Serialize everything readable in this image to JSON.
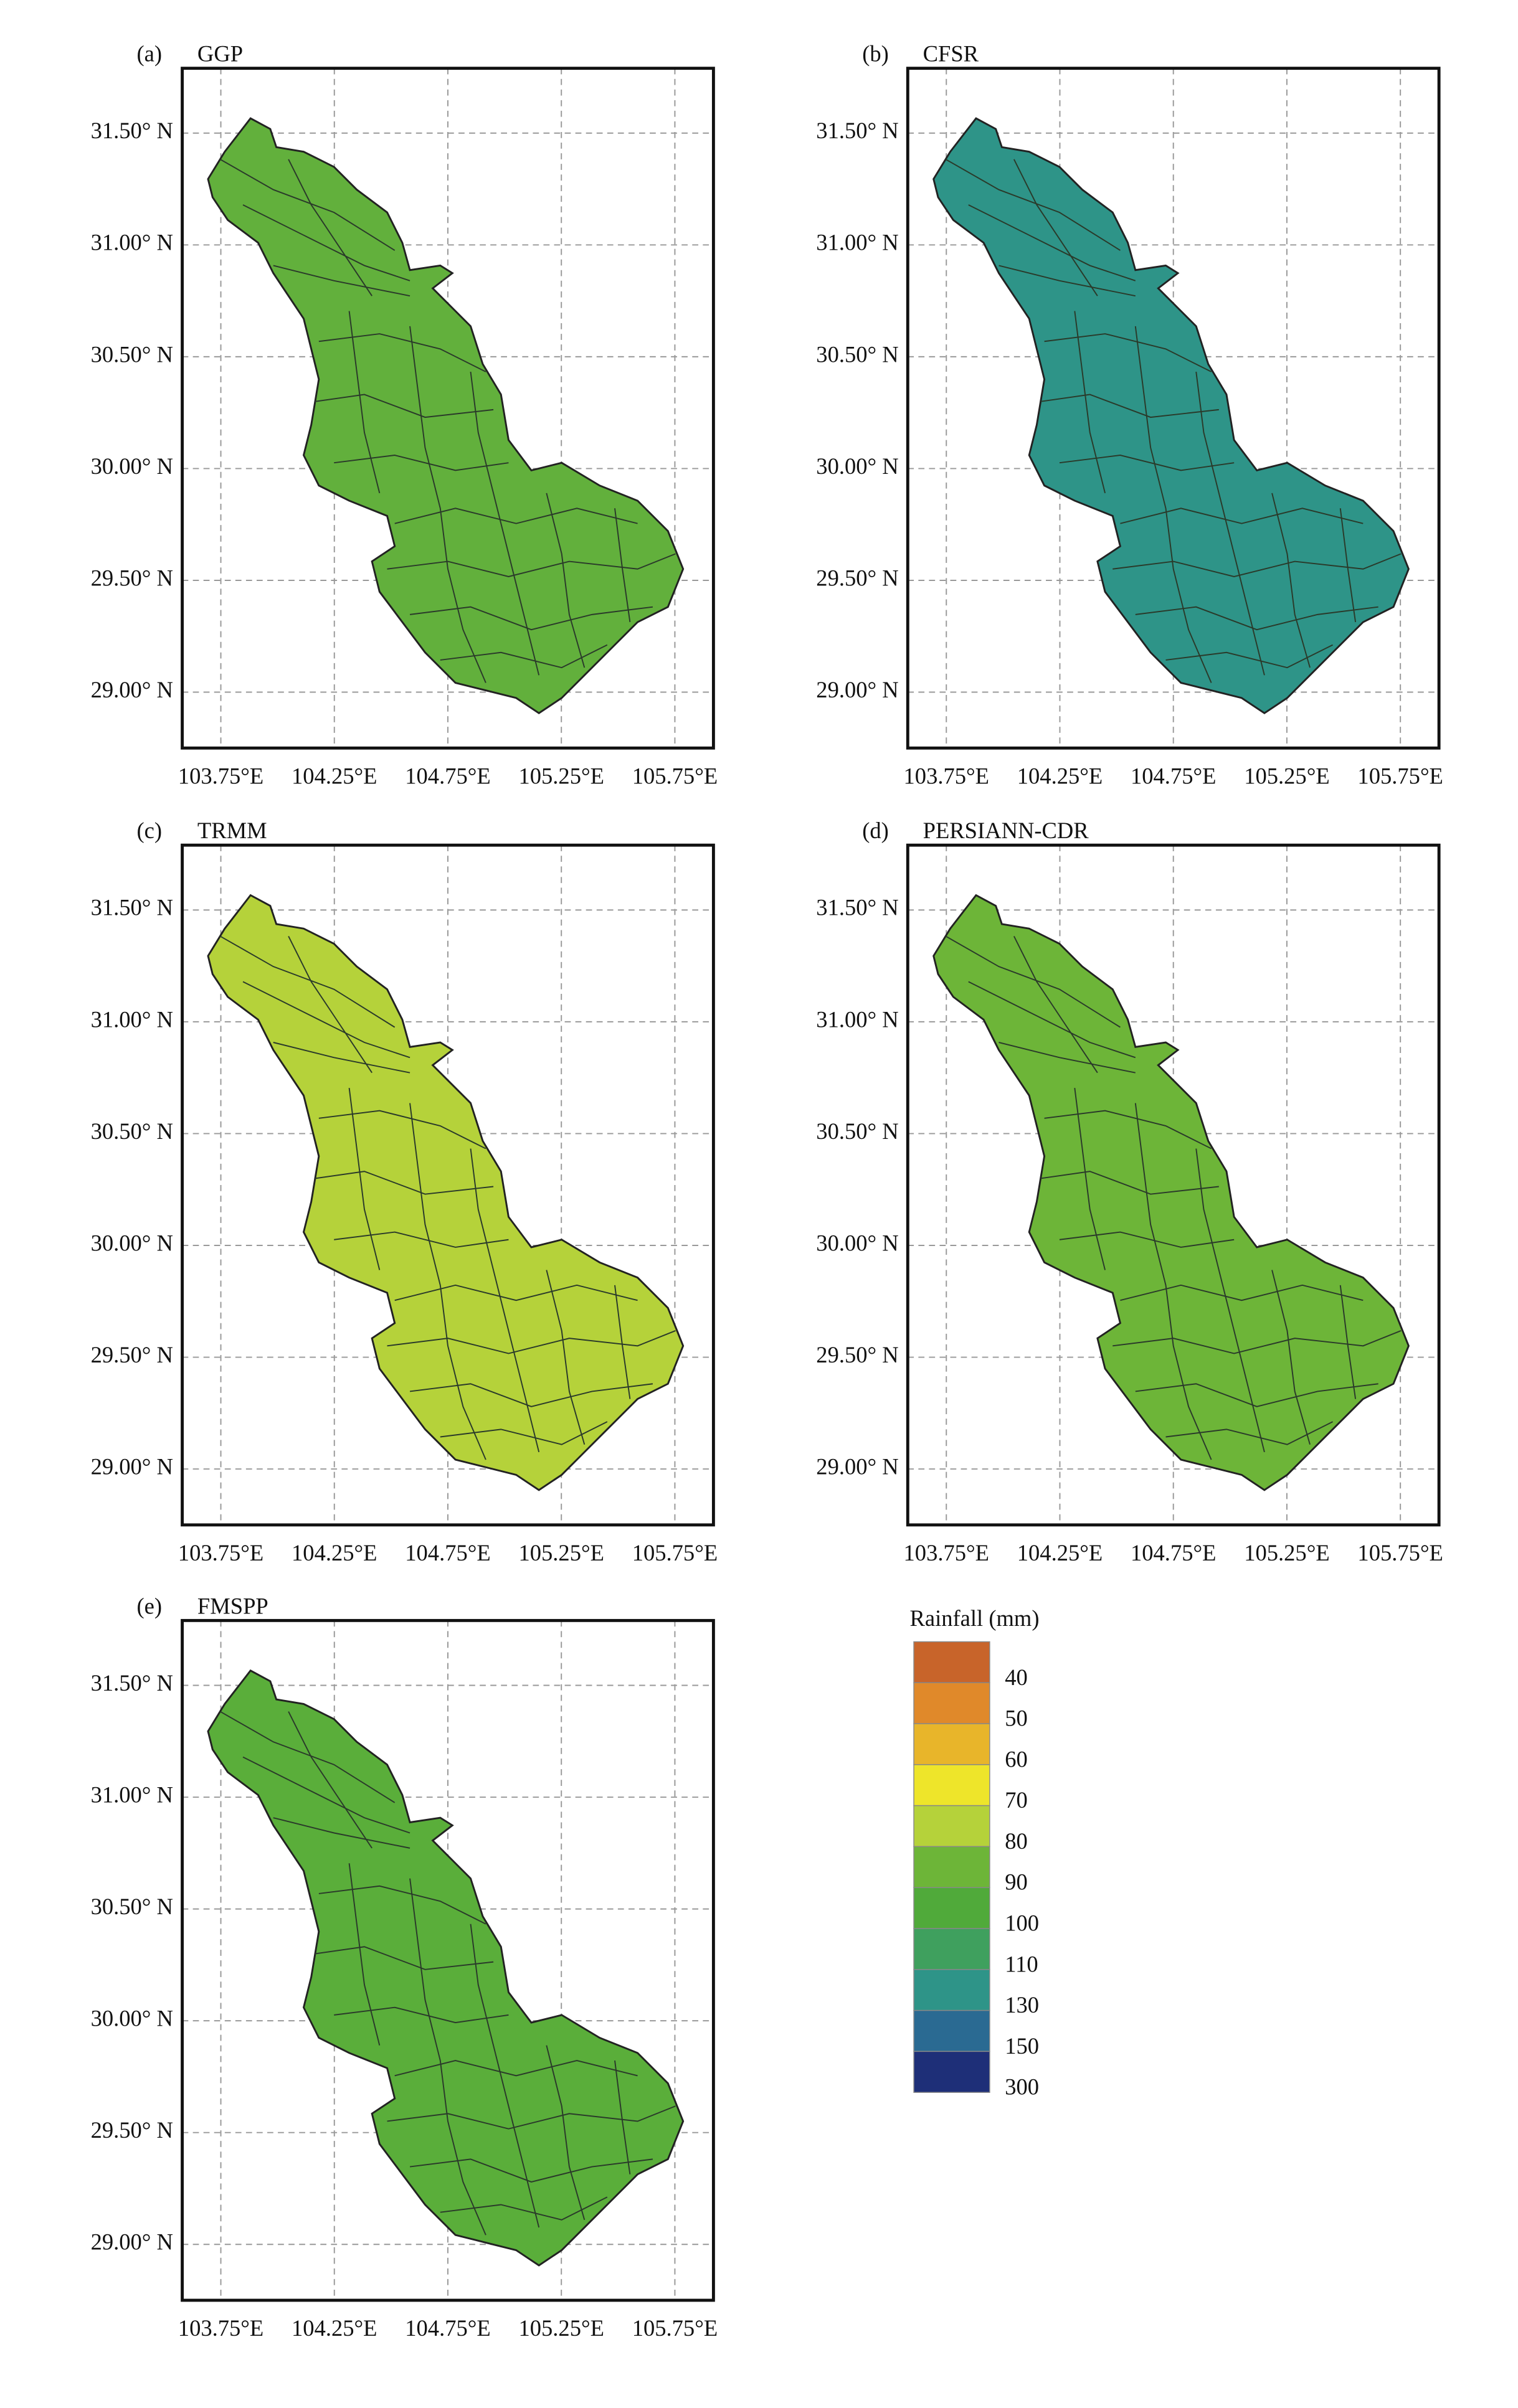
{
  "panels": [
    {
      "label": "(a)",
      "title": "GGP",
      "color": "#62b03c",
      "xlim": [
        103.58,
        105.92
      ],
      "ylim": [
        28.75,
        31.79
      ],
      "xticks": [
        {
          "value": 103.75,
          "label": "103.75°E"
        },
        {
          "value": 104.25,
          "label": "104.25°E"
        },
        {
          "value": 104.75,
          "label": "104.75°E"
        },
        {
          "value": 105.25,
          "label": "105.25°E"
        },
        {
          "value": 105.75,
          "label": "105.75°E"
        }
      ],
      "yticks": [
        {
          "value": 29.0,
          "label": "29.00° N"
        },
        {
          "value": 29.5,
          "label": "29.50° N"
        },
        {
          "value": 30.0,
          "label": "30.00° N"
        },
        {
          "value": 30.5,
          "label": "30.50° N"
        },
        {
          "value": 31.0,
          "label": "31.00° N"
        },
        {
          "value": 31.5,
          "label": "31.50° N"
        }
      ]
    },
    {
      "label": "(b)",
      "title": "CFSR",
      "color": "#2e9488",
      "xlim": [
        103.58,
        105.92
      ],
      "ylim": [
        28.75,
        31.79
      ],
      "xticks": [
        {
          "value": 103.75,
          "label": "103.75°E"
        },
        {
          "value": 104.25,
          "label": "104.25°E"
        },
        {
          "value": 104.75,
          "label": "104.75°E"
        },
        {
          "value": 105.25,
          "label": "105.25°E"
        },
        {
          "value": 105.75,
          "label": "105.75°E"
        }
      ],
      "yticks": [
        {
          "value": 29.0,
          "label": "29.00° N"
        },
        {
          "value": 29.5,
          "label": "29.50° N"
        },
        {
          "value": 30.0,
          "label": "30.00° N"
        },
        {
          "value": 30.5,
          "label": "30.50° N"
        },
        {
          "value": 31.0,
          "label": "31.00° N"
        },
        {
          "value": 31.5,
          "label": "31.50° N"
        }
      ]
    },
    {
      "label": "(c)",
      "title": "TRMM",
      "color": "#b5d23a",
      "xlim": [
        103.58,
        105.92
      ],
      "ylim": [
        28.75,
        31.79
      ],
      "xticks": [
        {
          "value": 103.75,
          "label": "103.75°E"
        },
        {
          "value": 104.25,
          "label": "104.25°E"
        },
        {
          "value": 104.75,
          "label": "104.75°E"
        },
        {
          "value": 105.25,
          "label": "105.25°E"
        },
        {
          "value": 105.75,
          "label": "105.75°E"
        }
      ],
      "yticks": [
        {
          "value": 29.0,
          "label": "29.00° N"
        },
        {
          "value": 29.5,
          "label": "29.50° N"
        },
        {
          "value": 30.0,
          "label": "30.00° N"
        },
        {
          "value": 30.5,
          "label": "30.50° N"
        },
        {
          "value": 31.0,
          "label": "31.00° N"
        },
        {
          "value": 31.5,
          "label": "31.50° N"
        }
      ]
    },
    {
      "label": "(d)",
      "title": "PERSIANN-CDR",
      "color": "#6db538",
      "xlim": [
        103.58,
        105.92
      ],
      "ylim": [
        28.75,
        31.79
      ],
      "xticks": [
        {
          "value": 103.75,
          "label": "103.75°E"
        },
        {
          "value": 104.25,
          "label": "104.25°E"
        },
        {
          "value": 104.75,
          "label": "104.75°E"
        },
        {
          "value": 105.25,
          "label": "105.25°E"
        },
        {
          "value": 105.75,
          "label": "105.75°E"
        }
      ],
      "yticks": [
        {
          "value": 29.0,
          "label": "29.00° N"
        },
        {
          "value": 29.5,
          "label": "29.50° N"
        },
        {
          "value": 30.0,
          "label": "30.00° N"
        },
        {
          "value": 30.5,
          "label": "30.50° N"
        },
        {
          "value": 31.0,
          "label": "31.00° N"
        },
        {
          "value": 31.5,
          "label": "31.50° N"
        }
      ]
    },
    {
      "label": "(e)",
      "title": "FMSPP",
      "color": "#5aae3a",
      "xlim": [
        103.58,
        105.92
      ],
      "ylim": [
        28.75,
        31.79
      ],
      "xticks": [
        {
          "value": 103.75,
          "label": "103.75°E"
        },
        {
          "value": 104.25,
          "label": "104.25°E"
        },
        {
          "value": 104.75,
          "label": "104.75°E"
        },
        {
          "value": 105.25,
          "label": "105.25°E"
        },
        {
          "value": 105.75,
          "label": "105.75°E"
        }
      ],
      "yticks": [
        {
          "value": 29.0,
          "label": "29.00° N"
        },
        {
          "value": 29.5,
          "label": "29.50° N"
        },
        {
          "value": 30.0,
          "label": "30.00° N"
        },
        {
          "value": 30.5,
          "label": "30.50° N"
        },
        {
          "value": 31.0,
          "label": "31.00° N"
        },
        {
          "value": 31.5,
          "label": "31.50° N"
        }
      ]
    }
  ],
  "legend": {
    "title": "Rainfall (mm)",
    "items": [
      {
        "value": 40,
        "color": "#c8642a"
      },
      {
        "value": 50,
        "color": "#e0892a"
      },
      {
        "value": 60,
        "color": "#e8b52a"
      },
      {
        "value": 70,
        "color": "#eee52a"
      },
      {
        "value": 80,
        "color": "#b5d23a"
      },
      {
        "value": 90,
        "color": "#6db538"
      },
      {
        "value": 100,
        "color": "#50aa3a"
      },
      {
        "value": 110,
        "color": "#3fa05e"
      },
      {
        "value": 130,
        "color": "#2e9488"
      },
      {
        "value": 150,
        "color": "#2a6a92"
      },
      {
        "value": 300,
        "color": "#1e2f78"
      }
    ]
  }
}
